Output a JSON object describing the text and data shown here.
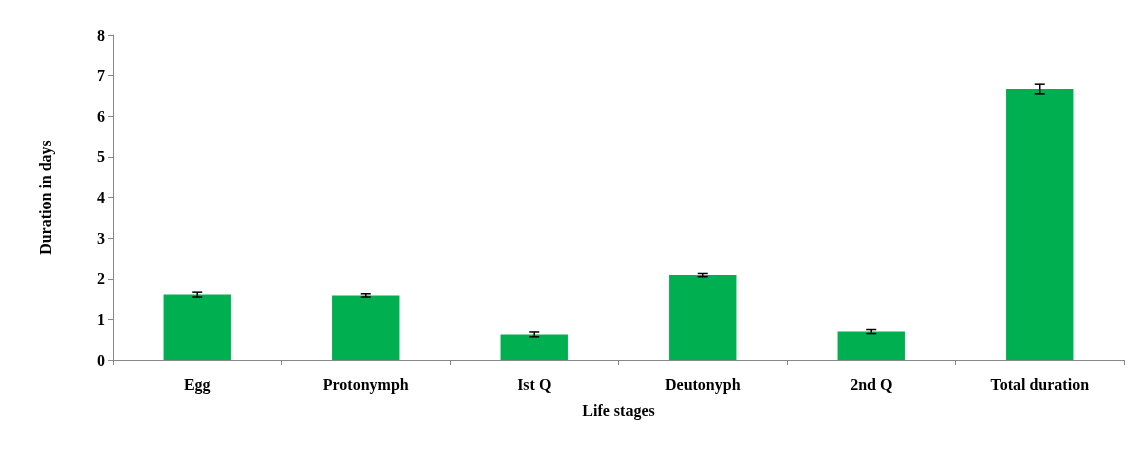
{
  "chart_data": {
    "type": "bar",
    "xlabel": "Life stages",
    "ylabel": "Duration in days",
    "categories": [
      "Egg",
      "Protonymph",
      "Ist Q",
      "Deutonyph",
      "2nd Q",
      "Total duration"
    ],
    "values": [
      1.61,
      1.59,
      0.63,
      2.09,
      0.7,
      6.67
    ],
    "errors": [
      0.06,
      0.04,
      0.06,
      0.04,
      0.05,
      0.12
    ],
    "color": "#00b050",
    "ylim": [
      0,
      8
    ],
    "yticks": [
      0,
      1,
      2,
      3,
      4,
      5,
      6,
      7,
      8
    ],
    "grid": false
  }
}
